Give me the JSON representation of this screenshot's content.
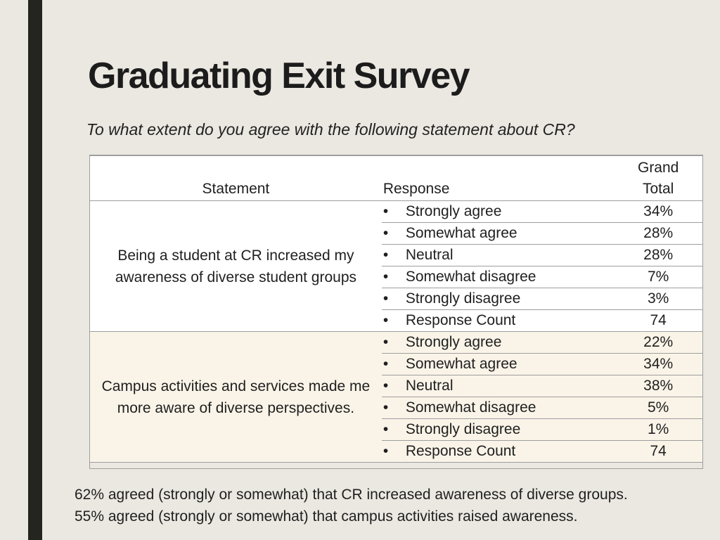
{
  "slide": {
    "title": "Graduating Exit Survey",
    "subtitle": "To what extent do you agree with the following statement about CR?"
  },
  "table": {
    "headers": {
      "statement": "Statement",
      "response": "Response",
      "total_line1": "Grand",
      "total_line2": "Total"
    },
    "bullet": "•",
    "groups": [
      {
        "statement": "Being a student at CR increased my awareness of diverse student groups",
        "rows": [
          {
            "response": "Strongly agree",
            "total": "34%"
          },
          {
            "response": "Somewhat agree",
            "total": "28%"
          },
          {
            "response": "Neutral",
            "total": "28%"
          },
          {
            "response": "Somewhat disagree",
            "total": "7%"
          },
          {
            "response": "Strongly disagree",
            "total": "3%"
          },
          {
            "response": "Response Count",
            "total": "74"
          }
        ]
      },
      {
        "statement": "Campus activities and services made me more aware of diverse perspectives.",
        "rows": [
          {
            "response": "Strongly agree",
            "total": "22%"
          },
          {
            "response": "Somewhat agree",
            "total": "34%"
          },
          {
            "response": "Neutral",
            "total": "38%"
          },
          {
            "response": "Somewhat disagree",
            "total": "5%"
          },
          {
            "response": "Strongly disagree",
            "total": "1%"
          },
          {
            "response": "Response Count",
            "total": "74"
          }
        ]
      }
    ]
  },
  "notes": [
    "62% agreed (strongly or somewhat) that CR increased awareness of diverse groups.",
    "55% agreed (strongly or somewhat) that campus activities raised awareness."
  ],
  "colors": {
    "background": "#ebe8e1",
    "side_bar": "#24251f",
    "group_a_fill": "#ffffff",
    "group_b_fill": "#faf4e8",
    "border": "#9e9e9e"
  }
}
